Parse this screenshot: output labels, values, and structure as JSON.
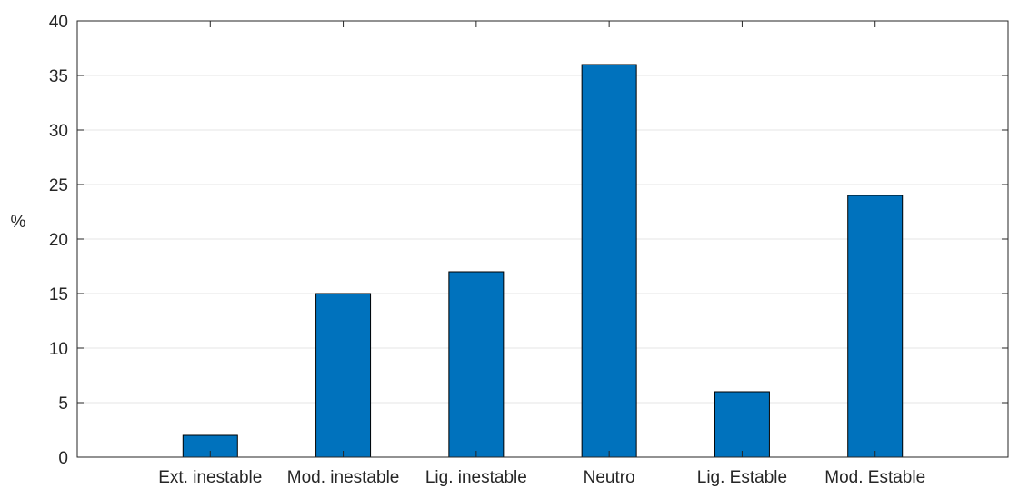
{
  "chart_data": {
    "type": "bar",
    "title": "",
    "xlabel": "",
    "ylabel": "%",
    "categories": [
      "Ext. inestable",
      "Mod. inestable",
      "Lig. inestable",
      "Neutro",
      "Lig. Estable",
      "Mod. Estable"
    ],
    "values": [
      2,
      15,
      17,
      36,
      6,
      24
    ],
    "ylim": [
      0,
      40
    ],
    "yticks": [
      0,
      5,
      10,
      15,
      20,
      25,
      30,
      35,
      40
    ],
    "grid": "horizontal",
    "bar_color": "#0072BD",
    "bar_edge_color": "#000000"
  }
}
